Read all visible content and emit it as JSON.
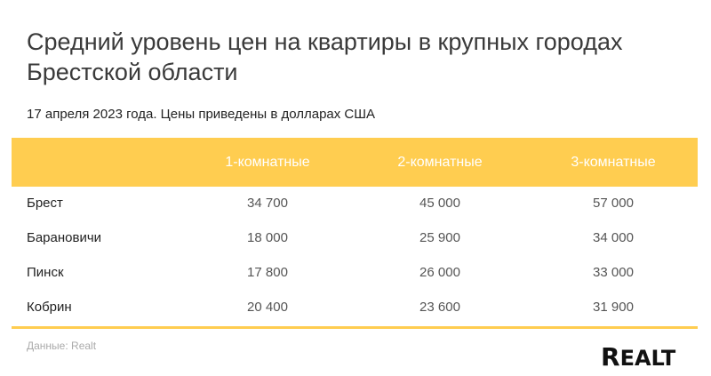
{
  "title": "Средний уровень цен на квартиры в крупных городах Брестской области",
  "subtitle": "17 апреля 2023 года. Цены приведены в долларах США",
  "colors": {
    "header": "#ffcd50",
    "header_text": "#ffffff",
    "accent_line": "#ffcd50"
  },
  "chart_data": {
    "type": "table",
    "columns": [
      "",
      "1-комнатные",
      "2-комнатные",
      "3-комнатные"
    ],
    "rows": [
      {
        "city": "Брест",
        "values": [
          "34 700",
          "45 000",
          "57 000"
        ]
      },
      {
        "city": "Барановичи",
        "values": [
          "18 000",
          "25 900",
          "34 000"
        ]
      },
      {
        "city": "Пинск",
        "values": [
          "17 800",
          "26 000",
          "33 000"
        ]
      },
      {
        "city": "Кобрин",
        "values": [
          "20 400",
          "23 600",
          "31 900"
        ]
      }
    ]
  },
  "source": "Данные: Realt",
  "logo": "REALT"
}
